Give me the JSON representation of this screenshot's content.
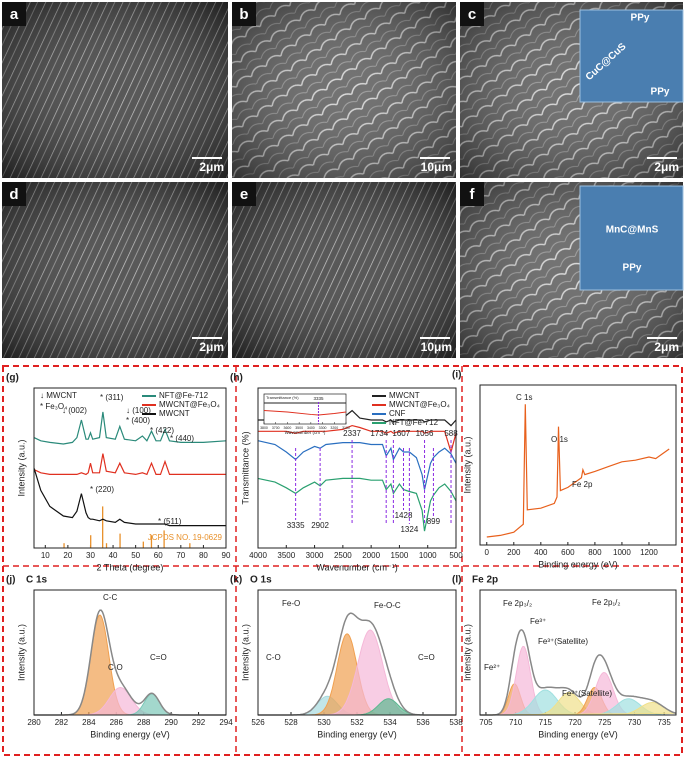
{
  "sem_panels": [
    {
      "label": "a",
      "scale_bar": "2μm"
    },
    {
      "label": "b",
      "scale_bar": "10μm"
    },
    {
      "label": "c",
      "scale_bar": "2μm",
      "inset": [
        "PPy",
        "CuC@CuS",
        "PPy"
      ]
    },
    {
      "label": "d",
      "scale_bar": "2μm"
    },
    {
      "label": "e",
      "scale_bar": "10μm"
    },
    {
      "label": "f",
      "scale_bar": "2μm",
      "inset": [
        "MnC@MnS",
        "PPy"
      ]
    }
  ],
  "chart_data": [
    {
      "type": "line",
      "panel": "(g)",
      "xlabel": "2 Theta (degree)",
      "ylabel": "Intensity (a.u.)",
      "x": [
        5,
        8,
        12,
        18,
        22,
        24,
        26,
        28,
        29,
        30,
        31,
        34,
        35.5,
        37,
        41,
        43,
        45,
        50,
        53,
        55,
        57,
        59,
        61,
        63,
        65,
        70,
        80,
        90
      ],
      "xlim": [
        5,
        90
      ],
      "xticks": [
        10,
        20,
        30,
        40,
        50,
        60,
        70,
        80,
        90
      ],
      "ylim": [
        0,
        10
      ],
      "legend": "upper right",
      "series": [
        {
          "name": "NFT@Fe-712",
          "color": "#2a8a7a",
          "values": [
            6.9,
            6.7,
            6.6,
            6.5,
            6.6,
            6.9,
            8.0,
            6.8,
            6.8,
            7.2,
            6.8,
            6.9,
            8.5,
            6.9,
            6.8,
            7.6,
            6.8,
            6.7,
            7.0,
            6.7,
            7.3,
            6.7,
            6.7,
            7.4,
            6.7,
            6.6,
            6.6,
            6.7
          ]
        },
        {
          "name": "MWCNT@Fe₃O₄",
          "color": "#e03020",
          "values": [
            4.9,
            4.7,
            4.6,
            4.6,
            4.6,
            4.6,
            4.7,
            4.6,
            4.7,
            5.3,
            4.7,
            4.7,
            5.9,
            4.8,
            4.7,
            5.3,
            4.7,
            4.6,
            4.7,
            4.6,
            5.3,
            4.6,
            4.6,
            5.4,
            4.6,
            4.6,
            4.6,
            4.6
          ]
        },
        {
          "name": "MWCNT",
          "color": "#111111",
          "values": [
            5.0,
            3.6,
            2.6,
            2.0,
            1.9,
            2.3,
            3.4,
            2.2,
            1.9,
            1.8,
            1.8,
            1.7,
            1.8,
            1.7,
            1.6,
            1.8,
            1.6,
            1.5,
            1.5,
            1.5,
            1.5,
            1.5,
            1.5,
            1.5,
            1.4,
            1.4,
            1.4,
            1.4
          ]
        }
      ],
      "reference": {
        "label": "JCPDS NO. 19-0629",
        "color": "#e8902a",
        "positions": [
          18.3,
          30.1,
          35.4,
          37.1,
          43.1,
          53.4,
          57.0,
          62.6,
          74.0
        ],
        "heights": [
          0.3,
          0.8,
          2.6,
          0.3,
          0.9,
          0.4,
          0.8,
          1.1,
          0.3
        ]
      },
      "annotations": [
        "↓ MWCNT",
        "* Fe₃O₄",
        "↓ (002)",
        "* (311)",
        "↓ (100)",
        "* (400)",
        "* (422)",
        "* (440)",
        "* (220)",
        "* (511)"
      ]
    },
    {
      "type": "line",
      "panel": "(h)",
      "xlabel": "Wavenumber (cm⁻¹)",
      "ylabel": "Transmittance (%)",
      "x": [
        4000,
        3700,
        3500,
        3335,
        3200,
        3000,
        2902,
        2800,
        2500,
        2337,
        2200,
        2000,
        1800,
        1734,
        1650,
        1607,
        1500,
        1428,
        1324,
        1200,
        1100,
        1056,
        950,
        899,
        800,
        700,
        588,
        500
      ],
      "xlim": [
        4000,
        500
      ],
      "xticks": [
        4000,
        3500,
        3000,
        2500,
        2000,
        1500,
        1000,
        500
      ],
      "ylim": [
        1.5,
        10
      ],
      "legend": "upper right",
      "series": [
        {
          "name": "MWCNT",
          "color": "#222222",
          "values": [
            8.3,
            8.3,
            8.3,
            8.2,
            8.3,
            8.3,
            8.3,
            8.3,
            8.4,
            8.8,
            8.4,
            8.3,
            8.3,
            8.2,
            8.3,
            8.2,
            8.3,
            8.3,
            8.3,
            8.3,
            8.3,
            8.2,
            8.3,
            8.3,
            8.3,
            8.3,
            8.0,
            8.3
          ]
        },
        {
          "name": "MWCNT@Fe₃O₄",
          "color": "#e03020",
          "values": [
            7.7,
            7.7,
            7.7,
            7.6,
            7.7,
            7.7,
            7.7,
            7.7,
            7.8,
            8.0,
            7.9,
            7.7,
            7.7,
            7.6,
            7.7,
            7.6,
            7.7,
            7.7,
            7.7,
            7.7,
            7.7,
            7.6,
            7.7,
            7.7,
            7.7,
            7.7,
            6.6,
            7.6
          ]
        },
        {
          "name": "CNF",
          "color": "#2a6fc0",
          "values": [
            7.2,
            7.0,
            6.6,
            6.2,
            6.6,
            6.9,
            6.8,
            7.0,
            7.1,
            7.1,
            7.1,
            7.0,
            7.0,
            6.4,
            6.8,
            6.2,
            6.8,
            6.6,
            6.6,
            6.3,
            5.4,
            4.6,
            6.0,
            6.3,
            6.6,
            6.8,
            6.5,
            6.0
          ]
        },
        {
          "name": "NFT@Fe-712",
          "color": "#2aa070",
          "values": [
            5.2,
            5.0,
            4.7,
            4.4,
            4.7,
            5.0,
            4.8,
            5.1,
            5.2,
            5.2,
            5.2,
            5.1,
            5.1,
            4.6,
            4.9,
            4.4,
            4.9,
            4.6,
            4.5,
            4.4,
            3.5,
            2.4,
            4.0,
            4.3,
            4.7,
            4.9,
            4.5,
            4.0
          ]
        }
      ],
      "peak_labels_top": [
        2337,
        1734,
        1607,
        1056,
        588
      ],
      "peak_labels_bottom": [
        3335,
        2902,
        1428,
        1324,
        899
      ],
      "inset": {
        "ylabel": "Transmittance (%)",
        "xlabel": "Wavenumber (cm⁻¹)",
        "x": [
          3800,
          3600,
          3400,
          3335,
          3200,
          3100
        ],
        "xlim": [
          3800,
          3100
        ],
        "xticks": [
          3800,
          3700,
          3600,
          3500,
          3400,
          3300,
          3200,
          3100
        ],
        "ylim": [
          0,
          10
        ],
        "marker": 3335,
        "series": [
          {
            "color": "#222222",
            "values": [
              7,
              7,
              7,
              7,
              7,
              7
            ]
          },
          {
            "color": "#e03020",
            "values": [
              4.5,
              4.0,
              3.2,
              3.0,
              3.5,
              4.0
            ]
          }
        ]
      }
    },
    {
      "type": "line",
      "panel": "(i)",
      "xlabel": "Binding energy (eV)",
      "ylabel": "Intensity (a.u.)",
      "x": [
        0,
        100,
        200,
        270,
        285,
        300,
        400,
        500,
        520,
        531,
        545,
        600,
        700,
        711,
        725,
        800,
        900,
        1000,
        1100,
        1200,
        1250,
        1300,
        1350
      ],
      "xlim": [
        -50,
        1400
      ],
      "xticks": [
        0,
        200,
        400,
        600,
        800,
        1000,
        1200
      ],
      "ylim": [
        0,
        10
      ],
      "series": [
        {
          "color": "#e8601c",
          "values": [
            0.5,
            0.6,
            0.8,
            1.3,
            8.8,
            2.2,
            2.3,
            2.6,
            3.0,
            7.4,
            3.4,
            3.6,
            4.2,
            4.7,
            4.4,
            4.6,
            4.9,
            5.2,
            5.3,
            5.5,
            5.4,
            5.7,
            6.0
          ]
        }
      ],
      "annotations": [
        "C 1s",
        "O 1s",
        "Fe 2p"
      ]
    },
    {
      "type": "peaks",
      "panel": "(j)",
      "title": "C 1s",
      "xlabel": "Binding energy (eV)",
      "ylabel": "Intensity (a.u.)",
      "xlim": [
        280,
        294
      ],
      "xticks": [
        280,
        282,
        284,
        286,
        288,
        290,
        292,
        294
      ],
      "ylim": [
        0,
        10
      ],
      "envelope_color": "#888888",
      "peaks": [
        {
          "name": "C-C",
          "center": 284.8,
          "height": 8.0,
          "width": 0.65,
          "color": "#f0a050"
        },
        {
          "name": "C-O",
          "center": 286.3,
          "height": 2.2,
          "width": 0.8,
          "color": "#f5b8d8"
        },
        {
          "name": "C=O",
          "center": 288.6,
          "height": 1.7,
          "width": 0.55,
          "color": "#7cc8b8"
        }
      ]
    },
    {
      "type": "peaks",
      "panel": "(k)",
      "title": "O 1s",
      "xlabel": "Binding energy (eV)",
      "ylabel": "Intensity (a.u.)",
      "xlim": [
        526,
        538
      ],
      "xticks": [
        526,
        528,
        530,
        532,
        534,
        536,
        538
      ],
      "ylim": [
        0,
        10
      ],
      "envelope_color": "#888888",
      "peaks": [
        {
          "name": "Fe-O",
          "center": 530.2,
          "height": 1.5,
          "width": 0.6,
          "color": "#a8dce0"
        },
        {
          "name": "Fe-O-C",
          "center": 531.4,
          "height": 6.5,
          "width": 0.6,
          "color": "#f0a050"
        },
        {
          "name": "C-O",
          "center": 532.8,
          "height": 6.8,
          "width": 0.75,
          "color": "#f5b8d8"
        },
        {
          "name": "C=O",
          "center": 533.9,
          "height": 1.3,
          "width": 0.6,
          "color": "#5cb890"
        }
      ]
    },
    {
      "type": "peaks",
      "panel": "(l)",
      "title": "Fe 2p",
      "xlabel": "Binding energy (eV)",
      "ylabel": "Intensity (a.u.)",
      "xlim": [
        704,
        737
      ],
      "xticks": [
        705,
        710,
        715,
        720,
        725,
        730,
        735
      ],
      "ylim": [
        0,
        10
      ],
      "envelope_color": "#888888",
      "peaks": [
        {
          "center": 709.8,
          "height": 2.5,
          "width": 1.0,
          "color": "#f0a050"
        },
        {
          "center": 711.3,
          "height": 5.5,
          "width": 1.2,
          "color": "#f5b8d8"
        },
        {
          "center": 715.0,
          "height": 2.0,
          "width": 2.0,
          "color": "#a0e0e0"
        },
        {
          "center": 719.0,
          "height": 1.8,
          "width": 1.8,
          "color": "#f0e08a"
        },
        {
          "center": 723.3,
          "height": 2.2,
          "width": 1.2,
          "color": "#f0a050"
        },
        {
          "center": 724.9,
          "height": 3.4,
          "width": 1.5,
          "color": "#f5b8d8"
        },
        {
          "center": 729.0,
          "height": 1.3,
          "width": 2.0,
          "color": "#a0e0e0"
        },
        {
          "center": 733.0,
          "height": 1.0,
          "width": 2.0,
          "color": "#f0e08a"
        }
      ],
      "annotations": [
        "Fe 2p₃/₂",
        "Fe³⁺",
        "Fe³⁺(Satellite)",
        "Fe 2p₁/₂",
        "Fe²⁺",
        "Fe³⁺(Satellite)"
      ]
    }
  ]
}
